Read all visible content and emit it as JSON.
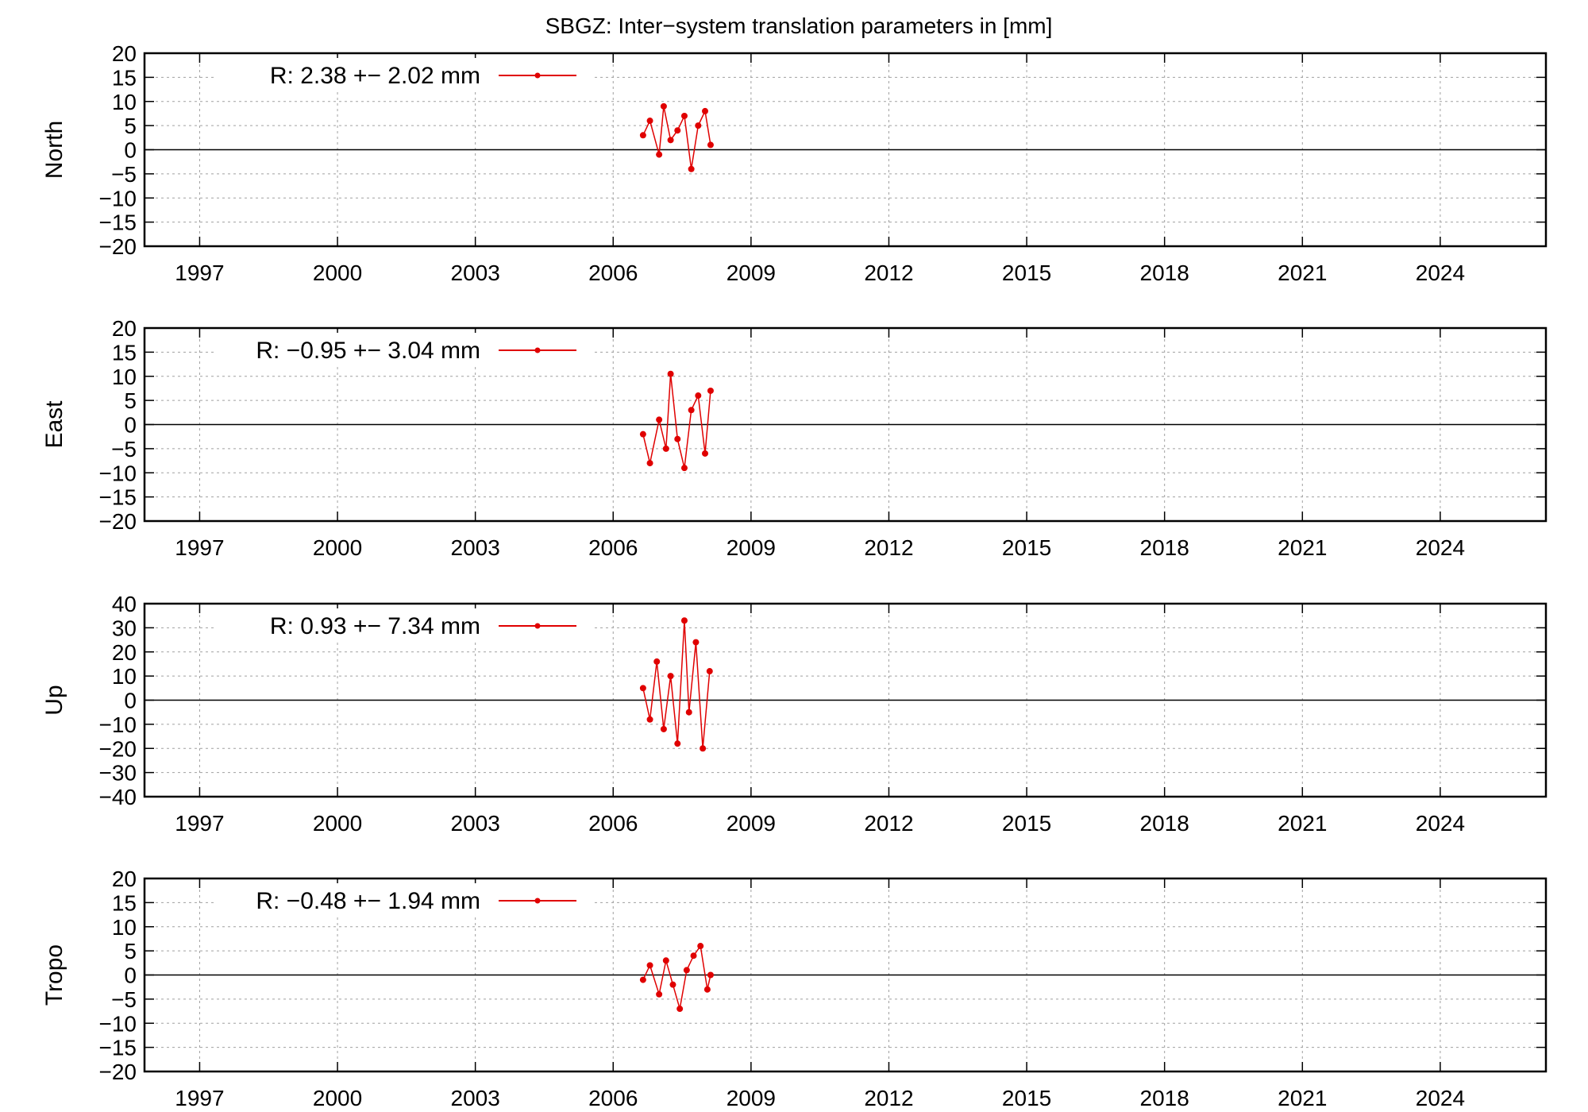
{
  "title": "SBGZ: Inter−system translation parameters in [mm]",
  "colors": {
    "series": "#e00000",
    "axis": "#000000",
    "grid": "#a0a0a0"
  },
  "chart_data": [
    {
      "type": "scatter",
      "ylabel": "North",
      "legend": "R:   2.38 +− 2.02 mm",
      "xlim": [
        1995.8,
        2026.3
      ],
      "ylim": [
        -20,
        20
      ],
      "xticks": [
        "1997",
        "2000",
        "2003",
        "2006",
        "2009",
        "2012",
        "2015",
        "2018",
        "2021",
        "2024"
      ],
      "yticks": [
        "20",
        "15",
        "10",
        "5",
        "0",
        "−5",
        "−10",
        "−15",
        "−20"
      ],
      "grid": true,
      "series": [
        {
          "x": [
            2006.65,
            2006.8,
            2007.0,
            2007.1,
            2007.25,
            2007.4,
            2007.55,
            2007.7,
            2007.85,
            2008.0,
            2008.12
          ],
          "y": [
            3,
            6,
            -1,
            9,
            2,
            4,
            7,
            -4,
            5,
            8,
            1
          ]
        }
      ]
    },
    {
      "type": "scatter",
      "ylabel": "East",
      "legend": "R:  −0.95 +− 3.04 mm",
      "xlim": [
        1995.8,
        2026.3
      ],
      "ylim": [
        -20,
        20
      ],
      "xticks": [
        "1997",
        "2000",
        "2003",
        "2006",
        "2009",
        "2012",
        "2015",
        "2018",
        "2021",
        "2024"
      ],
      "yticks": [
        "20",
        "15",
        "10",
        "5",
        "0",
        "−5",
        "−10",
        "−15",
        "−20"
      ],
      "grid": true,
      "series": [
        {
          "x": [
            2006.65,
            2006.8,
            2007.0,
            2007.15,
            2007.25,
            2007.4,
            2007.55,
            2007.7,
            2007.85,
            2008.0,
            2008.12
          ],
          "y": [
            -2,
            -8,
            1,
            -5,
            10.5,
            -3,
            -9,
            3,
            6,
            -6,
            7
          ]
        }
      ]
    },
    {
      "type": "scatter",
      "ylabel": "Up",
      "legend": "R:   0.93 +− 7.34 mm",
      "xlim": [
        1995.8,
        2026.3
      ],
      "ylim": [
        -40,
        40
      ],
      "xticks": [
        "1997",
        "2000",
        "2003",
        "2006",
        "2009",
        "2012",
        "2015",
        "2018",
        "2021",
        "2024"
      ],
      "yticks": [
        "40",
        "30",
        "20",
        "10",
        "0",
        "−10",
        "−20",
        "−30",
        "−40"
      ],
      "grid": true,
      "series": [
        {
          "x": [
            2006.65,
            2006.8,
            2006.95,
            2007.1,
            2007.25,
            2007.4,
            2007.55,
            2007.65,
            2007.8,
            2007.95,
            2008.1
          ],
          "y": [
            5,
            -8,
            16,
            -12,
            10,
            -18,
            33,
            -5,
            24,
            -20,
            12
          ]
        }
      ]
    },
    {
      "type": "scatter",
      "ylabel": "Tropo",
      "legend": "R:  −0.48 +− 1.94 mm",
      "xlim": [
        1995.8,
        2026.3
      ],
      "ylim": [
        -20,
        20
      ],
      "xticks": [
        "1997",
        "2000",
        "2003",
        "2006",
        "2009",
        "2012",
        "2015",
        "2018",
        "2021",
        "2024"
      ],
      "yticks": [
        "20",
        "15",
        "10",
        "5",
        "0",
        "−5",
        "−10",
        "−15",
        "−20"
      ],
      "grid": true,
      "series": [
        {
          "x": [
            2006.65,
            2006.8,
            2007.0,
            2007.15,
            2007.3,
            2007.45,
            2007.6,
            2007.75,
            2007.9,
            2008.05,
            2008.12
          ],
          "y": [
            -1,
            2,
            -4,
            3,
            -2,
            -7,
            1,
            4,
            6,
            -3,
            0
          ]
        }
      ]
    }
  ]
}
